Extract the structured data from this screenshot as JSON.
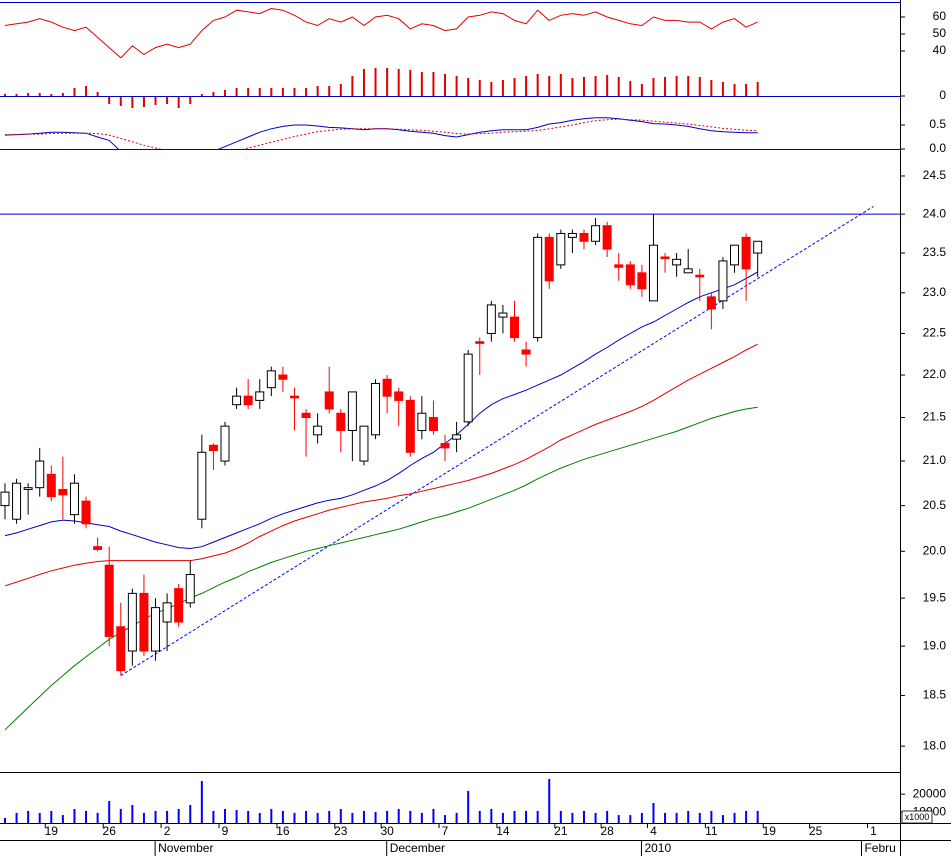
{
  "chart_data": [
    {
      "type": "line",
      "color": "#e00000",
      "ylim": [
        20,
        69
      ],
      "yticks": [
        40,
        50,
        60
      ],
      "values": [
        55,
        56,
        57,
        59,
        57,
        54,
        52,
        54,
        48,
        42,
        36,
        43,
        38,
        42,
        44,
        42,
        44,
        52,
        58,
        60,
        64,
        63,
        62,
        65,
        64,
        61,
        57,
        55,
        59,
        57,
        60,
        55,
        60,
        61,
        59,
        53,
        56,
        55,
        52,
        53,
        60,
        61,
        63,
        62,
        58,
        56,
        64,
        58,
        61,
        62,
        61,
        63,
        60,
        58,
        56,
        55,
        60,
        58,
        58,
        57,
        57,
        53,
        57,
        59,
        54,
        57
      ]
    },
    {
      "type": "bar",
      "color": "#e00000",
      "ylim": [
        -20,
        35
      ],
      "yticks": [
        0
      ],
      "values": [
        2,
        2,
        3,
        3,
        2,
        3,
        8,
        10,
        4,
        -8,
        -10,
        -12,
        -11,
        -9,
        -8,
        -12,
        -8,
        2,
        4,
        6,
        8,
        8,
        8,
        8,
        8,
        8,
        8,
        10,
        10,
        12,
        20,
        27,
        28,
        28,
        27,
        26,
        24,
        24,
        22,
        20,
        18,
        16,
        14,
        16,
        18,
        20,
        22,
        20,
        22,
        18,
        19,
        20,
        21,
        19,
        15,
        12,
        18,
        19,
        20,
        20,
        19,
        16,
        14,
        12,
        12,
        14
      ]
    },
    {
      "type": "line",
      "ylim": [
        -0.5,
        1.0
      ],
      "yticks": [
        {
          "value": 0,
          "label": "0.0"
        },
        0.5
      ],
      "series": [
        {
          "color": "#0000c8",
          "values": [
            0.29,
            0.3,
            0.31,
            0.33,
            0.35,
            0.35,
            0.34,
            0.33,
            0.25,
            0.18,
            -0.05,
            -0.1,
            -0.14,
            -0.18,
            -0.19,
            -0.19,
            -0.19,
            -0.12,
            -0.05,
            0.05,
            0.15,
            0.25,
            0.35,
            0.42,
            0.47,
            0.5,
            0.5,
            0.48,
            0.45,
            0.44,
            0.42,
            0.4,
            0.42,
            0.42,
            0.4,
            0.37,
            0.35,
            0.33,
            0.28,
            0.25,
            0.3,
            0.35,
            0.38,
            0.4,
            0.4,
            0.4,
            0.45,
            0.52,
            0.55,
            0.6,
            0.63,
            0.65,
            0.65,
            0.63,
            0.6,
            0.57,
            0.53,
            0.52,
            0.5,
            0.47,
            0.42,
            0.38,
            0.36,
            0.35,
            0.34,
            0.34
          ]
        },
        {
          "color": "#e00000",
          "dash": true,
          "values": [
            0.3,
            0.3,
            0.31,
            0.31,
            0.32,
            0.33,
            0.33,
            0.33,
            0.32,
            0.29,
            0.22,
            0.15,
            0.08,
            0.02,
            -0.04,
            -0.08,
            -0.11,
            -0.12,
            -0.11,
            -0.08,
            -0.04,
            0.02,
            0.08,
            0.14,
            0.2,
            0.26,
            0.31,
            0.36,
            0.39,
            0.41,
            0.42,
            0.42,
            0.42,
            0.42,
            0.41,
            0.4,
            0.39,
            0.37,
            0.35,
            0.32,
            0.31,
            0.32,
            0.33,
            0.35,
            0.36,
            0.37,
            0.39,
            0.42,
            0.46,
            0.5,
            0.55,
            0.59,
            0.61,
            0.62,
            0.61,
            0.6,
            0.58,
            0.56,
            0.54,
            0.52,
            0.49,
            0.46,
            0.43,
            0.41,
            0.39,
            0.38
          ]
        }
      ]
    },
    {
      "type": "candlestick",
      "log": true,
      "up_color": "#ffffff",
      "down_color": "#ff0000",
      "ylim": [
        17.75,
        24.86
      ],
      "yticks": [
        {
          "value": 18,
          "label": "18.0"
        },
        18.5,
        {
          "value": 19,
          "label": "19.0"
        },
        19.5,
        {
          "value": 20,
          "label": "20.0"
        },
        20.5,
        {
          "value": 21,
          "label": "21.0"
        },
        21.5,
        {
          "value": 22,
          "label": "22.0"
        },
        22.5,
        {
          "value": 23,
          "label": "23.0"
        },
        23.5,
        {
          "value": 24,
          "label": "24.0"
        },
        24.5
      ],
      "open": [
        20.5,
        20.35,
        20.68,
        20.7,
        20.85,
        20.68,
        20.4,
        20.55,
        20.05,
        19.85,
        19.2,
        18.95,
        19.55,
        18.95,
        19.25,
        19.6,
        19.45,
        20.35,
        21.18,
        21.0,
        21.65,
        21.75,
        21.7,
        21.85,
        22.0,
        21.75,
        21.55,
        21.3,
        21.8,
        21.55,
        21.35,
        21.0,
        21.3,
        21.95,
        21.8,
        21.7,
        21.35,
        21.5,
        21.2,
        21.25,
        21.45,
        22.4,
        22.5,
        22.7,
        22.7,
        22.3,
        22.45,
        23.7,
        23.35,
        23.7,
        23.75,
        23.65,
        23.85,
        23.35,
        23.35,
        23.25,
        22.9,
        23.45,
        23.35,
        23.25,
        23.22,
        22.95,
        22.9,
        23.35,
        23.7,
        23.5
      ],
      "high": [
        20.75,
        20.8,
        20.75,
        21.15,
        20.95,
        21.05,
        20.85,
        20.6,
        20.15,
        20.05,
        19.45,
        19.6,
        19.75,
        19.5,
        19.55,
        19.65,
        19.9,
        21.3,
        21.2,
        21.45,
        21.85,
        21.95,
        21.95,
        22.1,
        22.1,
        21.85,
        21.6,
        21.55,
        22.1,
        21.6,
        21.8,
        21.4,
        21.95,
        22.0,
        21.85,
        21.75,
        21.75,
        21.7,
        21.3,
        21.45,
        22.3,
        22.45,
        22.9,
        22.85,
        22.9,
        22.4,
        23.75,
        23.75,
        23.8,
        23.8,
        23.8,
        23.95,
        23.9,
        23.5,
        23.4,
        23.35,
        24.0,
        23.5,
        23.5,
        23.55,
        23.3,
        23.0,
        23.45,
        23.6,
        23.75,
        23.65
      ],
      "low": [
        20.35,
        20.3,
        20.4,
        20.6,
        20.55,
        20.35,
        20.3,
        20.25,
        20.0,
        19.0,
        18.7,
        18.8,
        18.9,
        18.85,
        18.95,
        19.2,
        19.4,
        20.25,
        20.9,
        20.95,
        21.6,
        21.6,
        21.6,
        21.75,
        21.8,
        21.35,
        21.05,
        21.2,
        21.55,
        21.1,
        21.0,
        20.95,
        21.25,
        21.55,
        21.4,
        21.05,
        21.25,
        21.3,
        21.0,
        21.1,
        21.4,
        22.0,
        22.4,
        22.5,
        22.4,
        22.1,
        22.4,
        23.05,
        23.3,
        23.5,
        23.55,
        23.6,
        23.45,
        23.15,
        23.05,
        22.95,
        22.9,
        23.25,
        23.2,
        23.25,
        22.9,
        22.55,
        22.8,
        23.25,
        22.9,
        23.2
      ],
      "close": [
        20.65,
        20.75,
        20.7,
        21.0,
        20.6,
        20.62,
        20.75,
        20.3,
        20.02,
        19.1,
        18.75,
        19.55,
        18.95,
        19.4,
        19.45,
        19.25,
        19.75,
        21.1,
        21.12,
        21.4,
        21.75,
        21.65,
        21.8,
        22.05,
        21.95,
        21.73,
        21.5,
        21.4,
        21.6,
        21.35,
        21.8,
        21.4,
        21.9,
        21.75,
        21.7,
        21.1,
        21.55,
        21.35,
        21.15,
        21.3,
        22.25,
        22.38,
        22.85,
        22.75,
        22.45,
        22.25,
        23.7,
        23.15,
        23.75,
        23.75,
        23.65,
        23.85,
        23.55,
        23.32,
        23.1,
        23.05,
        23.6,
        23.43,
        23.42,
        23.3,
        23.2,
        22.8,
        23.4,
        23.6,
        23.3,
        23.65
      ],
      "series": [
        {
          "color": "#0000c8",
          "values": [
            20.17,
            20.2,
            20.24,
            20.28,
            20.32,
            20.34,
            20.33,
            20.31,
            20.29,
            20.27,
            20.22,
            20.18,
            20.14,
            20.1,
            20.07,
            20.04,
            20.03,
            20.05,
            20.1,
            20.15,
            20.2,
            20.25,
            20.3,
            20.36,
            20.41,
            20.45,
            20.49,
            20.53,
            20.56,
            20.58,
            20.62,
            20.67,
            20.72,
            20.78,
            20.86,
            20.95,
            21.03,
            21.1,
            21.2,
            21.3,
            21.42,
            21.55,
            21.65,
            21.72,
            21.77,
            21.82,
            21.88,
            21.94,
            22.0,
            22.08,
            22.16,
            22.25,
            22.33,
            22.42,
            22.5,
            22.58,
            22.64,
            22.72,
            22.8,
            22.88,
            22.95,
            23.0,
            23.05,
            23.1,
            23.18,
            23.26
          ]
        },
        {
          "color": "#e00000",
          "values": [
            19.63,
            19.67,
            19.71,
            19.75,
            19.79,
            19.82,
            19.85,
            19.87,
            19.89,
            19.9,
            19.9,
            19.9,
            19.9,
            19.9,
            19.9,
            19.9,
            19.9,
            19.92,
            19.95,
            19.98,
            20.03,
            20.09,
            20.16,
            20.22,
            20.28,
            20.33,
            20.37,
            20.41,
            20.45,
            20.48,
            20.51,
            20.54,
            20.56,
            20.58,
            20.61,
            20.63,
            20.66,
            20.69,
            20.72,
            20.75,
            20.78,
            20.82,
            20.86,
            20.91,
            20.96,
            21.02,
            21.09,
            21.16,
            21.24,
            21.3,
            21.36,
            21.42,
            21.47,
            21.52,
            21.57,
            21.63,
            21.7,
            21.78,
            21.86,
            21.94,
            22.01,
            22.08,
            22.15,
            22.22,
            22.3,
            22.37
          ]
        },
        {
          "color": "#008000",
          "values": [
            18.16,
            18.27,
            18.38,
            18.49,
            18.6,
            18.7,
            18.8,
            18.89,
            18.98,
            19.07,
            19.14,
            19.21,
            19.28,
            19.34,
            19.39,
            19.44,
            19.5,
            19.55,
            19.61,
            19.67,
            19.72,
            19.78,
            19.83,
            19.88,
            19.92,
            19.96,
            20.0,
            20.03,
            20.06,
            20.09,
            20.12,
            20.15,
            20.18,
            20.21,
            20.24,
            20.28,
            20.32,
            20.36,
            20.39,
            20.43,
            20.47,
            20.52,
            20.57,
            20.62,
            20.67,
            20.73,
            20.8,
            20.86,
            20.92,
            20.97,
            21.02,
            21.06,
            21.1,
            21.14,
            21.18,
            21.22,
            21.26,
            21.3,
            21.34,
            21.39,
            21.44,
            21.49,
            21.53,
            21.57,
            21.6,
            21.62
          ]
        }
      ],
      "hline": 24,
      "trendline": {
        "x": [
          10,
          75
        ],
        "y": [
          18.7,
          24.1
        ]
      }
    },
    {
      "type": "bar",
      "color": "#0000ff",
      "ylim": [
        4000,
        32300
      ],
      "yticks": [
        20000,
        10000
      ],
      "unit": "x1000",
      "values": [
        6800,
        9600,
        10700,
        9600,
        10700,
        8400,
        11800,
        10700,
        9600,
        16200,
        11800,
        14000,
        9600,
        10700,
        10700,
        11800,
        14000,
        27300,
        10700,
        11800,
        11200,
        10700,
        9600,
        11800,
        10700,
        9600,
        10700,
        9600,
        10700,
        11800,
        9600,
        10700,
        10100,
        10700,
        11800,
        10700,
        9600,
        11800,
        8400,
        9600,
        21800,
        10700,
        11800,
        9600,
        10700,
        10700,
        10700,
        28400,
        10700,
        9600,
        10700,
        9600,
        10700,
        8400,
        8400,
        9600,
        15100,
        9600,
        9600,
        10700,
        9600,
        10700,
        8400,
        9600,
        10700,
        10700
      ],
      "xlim": [
        -0.43,
        77.29
      ],
      "xticks": [
        {
          "value": 4,
          "label": "19"
        },
        {
          "value": 9,
          "label": "26"
        },
        {
          "value": 14,
          "label": "2"
        },
        {
          "value": 19,
          "label": "9"
        },
        {
          "value": 24,
          "label": "16"
        },
        {
          "value": 29,
          "label": "23"
        },
        {
          "value": 33,
          "label": "30"
        },
        {
          "value": 38,
          "label": "7"
        },
        {
          "value": 43,
          "label": "14"
        },
        {
          "value": 48,
          "label": "21"
        },
        {
          "value": 52,
          "label": "28"
        },
        {
          "value": 56,
          "label": "4"
        },
        {
          "value": 61,
          "label": "11"
        },
        {
          "value": 66,
          "label": "19"
        },
        {
          "value": 70,
          "label": "25"
        },
        {
          "value": 75,
          "label": "1"
        }
      ],
      "months": [
        {
          "value": 14,
          "label": "November"
        },
        {
          "value": 34,
          "label": "December"
        },
        {
          "value": 56,
          "label": "2010"
        },
        {
          "value": 75,
          "label": "Febru"
        }
      ]
    }
  ]
}
